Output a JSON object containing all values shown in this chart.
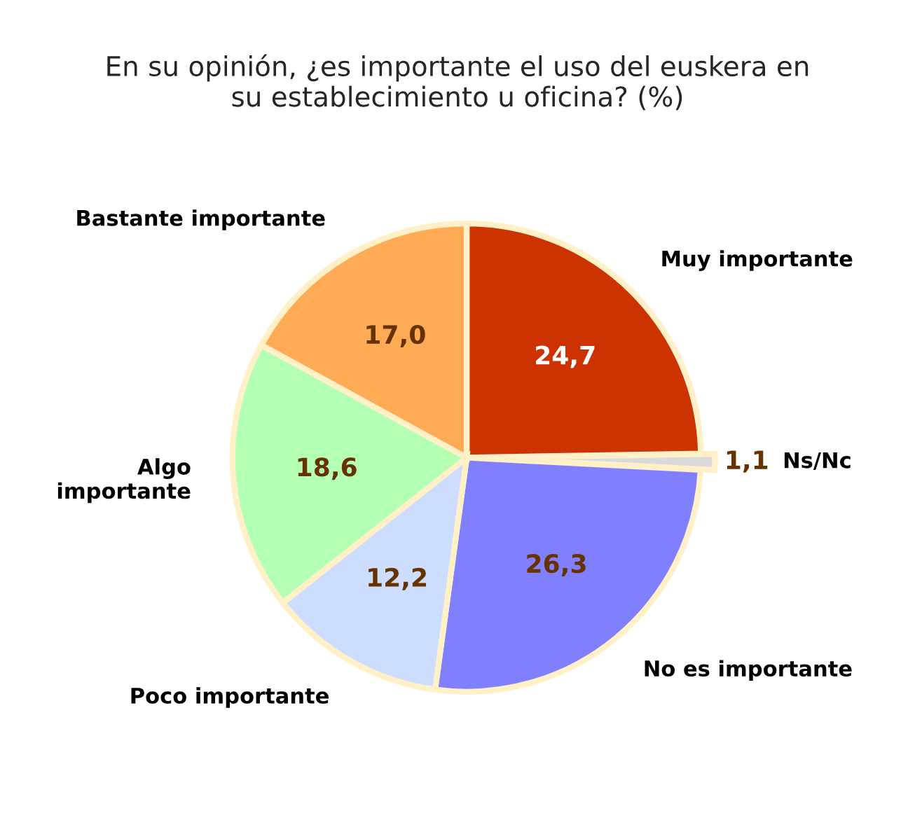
{
  "chart_data": {
    "type": "pie",
    "title": "En su opinión, ¿es importante el uso del euskera en\nsu establecimiento u oficina? (%)",
    "categories": [
      "Muy importante",
      "Ns/Nc",
      "No es importante",
      "Poco importante",
      "Algo\nimportante",
      "Bastante importante"
    ],
    "values": [
      24.7,
      1.1,
      26.3,
      12.2,
      18.6,
      17.0
    ],
    "value_labels": [
      "24,7",
      "1,1",
      "26,3",
      "12,2",
      "18,6",
      "17,0"
    ],
    "colors": [
      "#cc3300",
      "#d9d9d9",
      "#8080ff",
      "#ccddff",
      "#b3ffb3",
      "#ffaa55"
    ],
    "legend": false
  }
}
